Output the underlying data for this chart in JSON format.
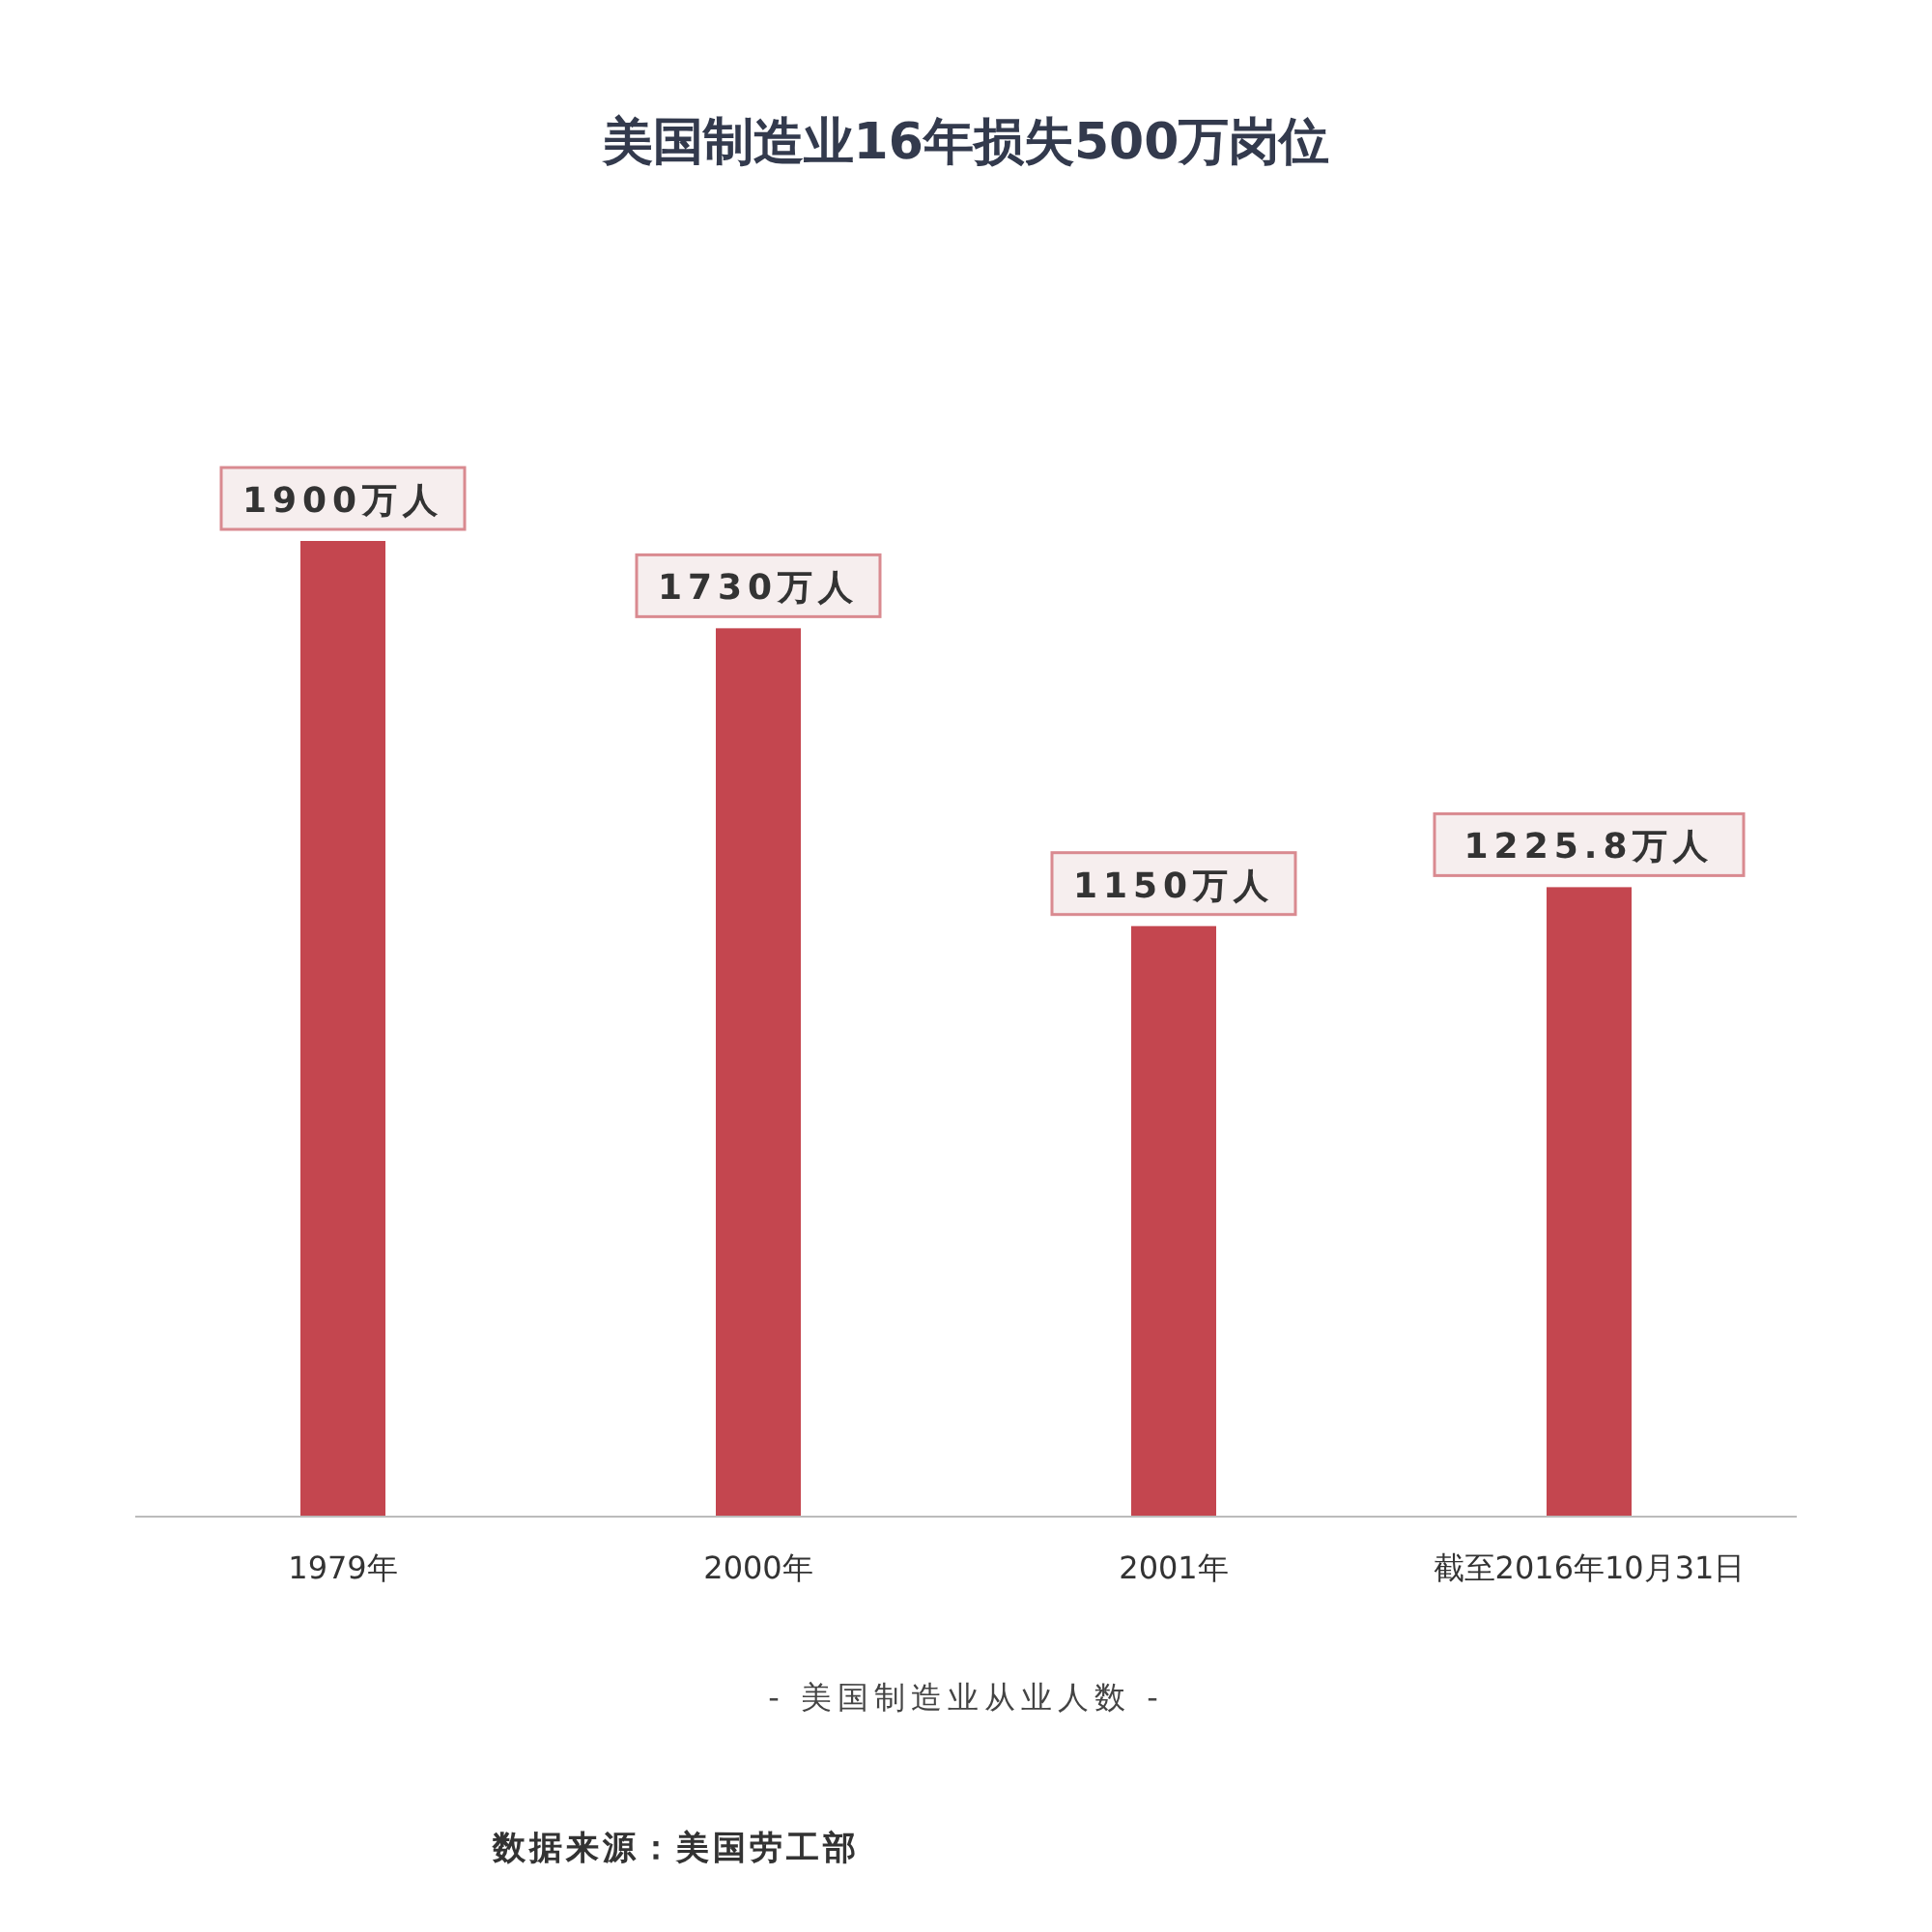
{
  "chart_data": {
    "type": "bar",
    "title": "美国制造业16年损失500万岗位",
    "xlabel": "- 美国制造业从业人数 -",
    "categories": [
      "1979年",
      "2000年",
      "2001年",
      "截至2016年10月31日"
    ],
    "values": [
      1900,
      1730,
      1150,
      1225.8
    ],
    "value_labels": [
      "1900万人",
      "1730万人",
      "1150万人",
      "1225.8万人"
    ],
    "color": "#c4464f",
    "annotations": [
      "数据来源：美国劳工部"
    ]
  }
}
